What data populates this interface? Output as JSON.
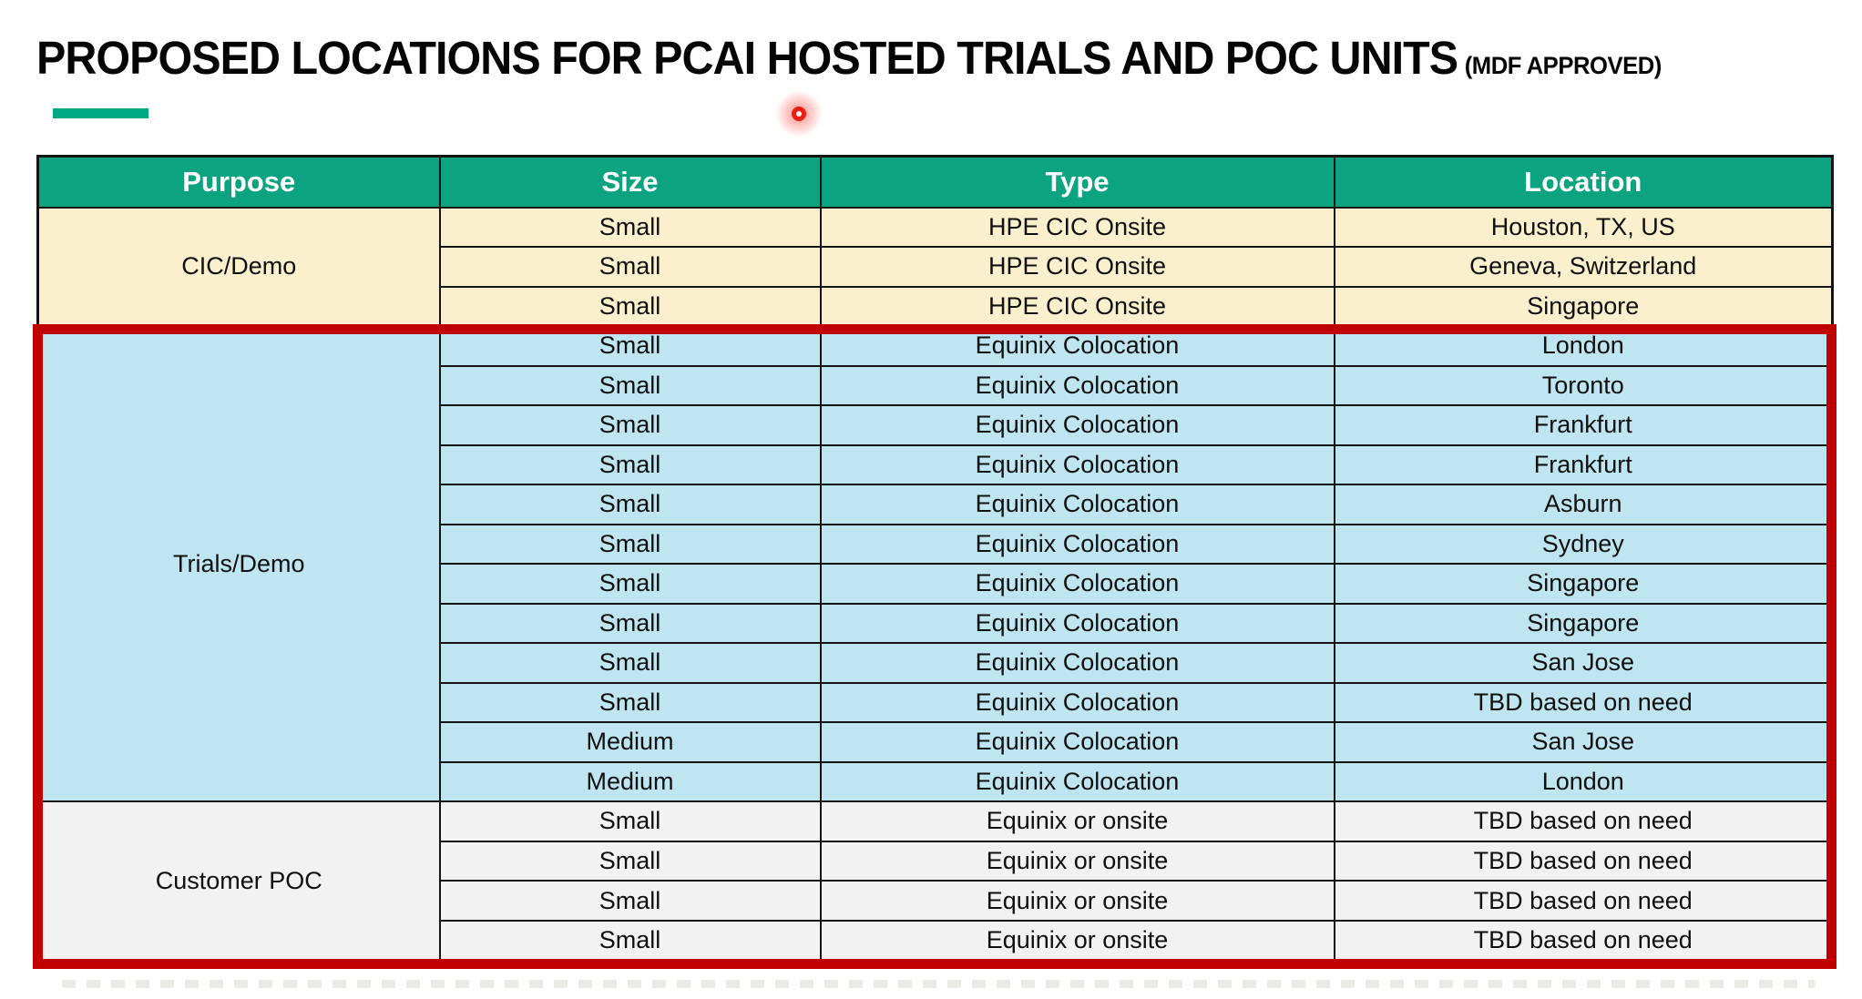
{
  "slide": {
    "title": "PROPOSED LOCATIONS FOR PCAI HOSTED TRIALS AND POC UNITS",
    "title_suffix": "(MDF APPROVED)"
  },
  "colors": {
    "accent_green": "#01A982",
    "header_teal": "#0CA381",
    "section_cream": "#FAF0CE",
    "section_light_blue": "#BFE6F0",
    "section_light_gray": "#F2F2F2",
    "highlight_red": "#C00000",
    "laser_red": "#EA1D12"
  },
  "table": {
    "headers": [
      "Purpose",
      "Size",
      "Type",
      "Location"
    ],
    "sections": [
      {
        "purpose": "CIC/Demo",
        "theme": "cream",
        "rows": [
          {
            "size": "Small",
            "type": "HPE CIC Onsite",
            "location": "Houston, TX, US"
          },
          {
            "size": "Small",
            "type": "HPE CIC Onsite",
            "location": "Geneva, Switzerland"
          },
          {
            "size": "Small",
            "type": "HPE CIC Onsite",
            "location": "Singapore"
          }
        ]
      },
      {
        "purpose": "Trials/Demo",
        "theme": "blue",
        "rows": [
          {
            "size": "Small",
            "type": "Equinix Colocation",
            "location": "London"
          },
          {
            "size": "Small",
            "type": "Equinix Colocation",
            "location": "Toronto"
          },
          {
            "size": "Small",
            "type": "Equinix Colocation",
            "location": "Frankfurt"
          },
          {
            "size": "Small",
            "type": "Equinix Colocation",
            "location": "Frankfurt"
          },
          {
            "size": "Small",
            "type": "Equinix Colocation",
            "location": "Asburn"
          },
          {
            "size": "Small",
            "type": "Equinix Colocation",
            "location": "Sydney"
          },
          {
            "size": "Small",
            "type": "Equinix Colocation",
            "location": "Singapore"
          },
          {
            "size": "Small",
            "type": "Equinix Colocation",
            "location": "Singapore"
          },
          {
            "size": "Small",
            "type": "Equinix Colocation",
            "location": "San Jose"
          },
          {
            "size": "Small",
            "type": "Equinix Colocation",
            "location": "TBD based on need"
          },
          {
            "size": "Medium",
            "type": "Equinix Colocation",
            "location": "San Jose"
          },
          {
            "size": "Medium",
            "type": "Equinix Colocation",
            "location": "London"
          }
        ]
      },
      {
        "purpose": "Customer POC",
        "theme": "gray",
        "rows": [
          {
            "size": "Small",
            "type": "Equinix or onsite",
            "location": "TBD based on need"
          },
          {
            "size": "Small",
            "type": "Equinix or onsite",
            "location": "TBD based on need"
          },
          {
            "size": "Small",
            "type": "Equinix or onsite",
            "location": "TBD based on need"
          },
          {
            "size": "Small",
            "type": "Equinix or onsite",
            "location": "TBD based on need"
          }
        ]
      }
    ]
  },
  "annotations": {
    "highlight_box_sections": "Trials/Demo + Customer POC",
    "laser_pointer": "red laser dot below title"
  }
}
